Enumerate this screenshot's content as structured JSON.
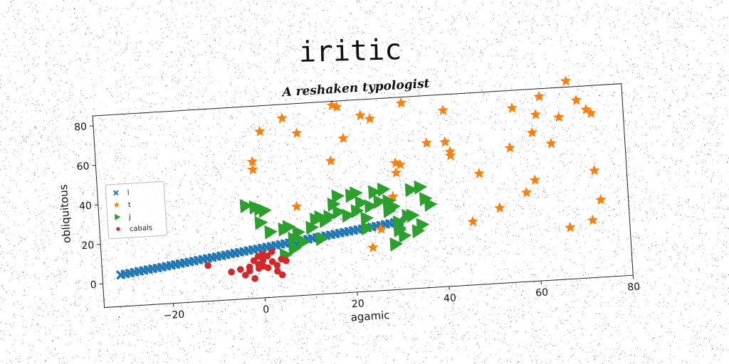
{
  "chart_data": {
    "type": "scatter",
    "title": "iritic",
    "subtitle": "A reshaken typologist",
    "xlabel": "agamic",
    "ylabel": "obliquitous",
    "xlim": [
      -35,
      80
    ],
    "ylim": [
      -12,
      85
    ],
    "xticks": [
      -20,
      0,
      20,
      40,
      60,
      80
    ],
    "yticks": [
      0,
      20,
      40,
      60,
      80
    ],
    "xtick_labels": [
      "−20",
      "0",
      "20",
      "40",
      "60",
      "80"
    ],
    "ytick_labels": [
      "0",
      "20",
      "40",
      "60",
      "80"
    ],
    "grid": false,
    "legend_position": "center-left",
    "series": [
      {
        "name": "l",
        "marker": "x",
        "color": "#1f77b4",
        "x": [
          -31,
          -30,
          -29,
          -28,
          -27,
          -26,
          -25,
          -24,
          -23,
          -22,
          -21,
          -20,
          -19,
          -18,
          -17,
          -16,
          -15,
          -14,
          -13,
          -12,
          -11,
          -10,
          -9,
          -8,
          -7,
          -6,
          -5,
          -4,
          -3,
          -2,
          -1,
          0,
          1,
          2,
          3,
          4,
          5,
          6,
          7,
          8,
          9,
          10,
          11,
          12,
          13,
          14,
          15,
          16,
          17,
          18,
          19,
          20,
          21,
          22,
          23,
          24,
          25,
          26,
          27,
          28,
          29,
          30
        ],
        "y": [
          4.0,
          4.3,
          4.6,
          4.9,
          5.2,
          5.5,
          5.8,
          6.1,
          6.3,
          6.6,
          6.9,
          7.2,
          7.5,
          7.8,
          8.1,
          8.4,
          8.7,
          9.0,
          9.3,
          9.6,
          9.9,
          10.2,
          10.5,
          10.8,
          11.1,
          11.4,
          11.7,
          12.0,
          12.3,
          12.6,
          12.9,
          13.2,
          13.5,
          13.8,
          14.1,
          14.4,
          14.7,
          15.0,
          15.3,
          15.6,
          15.9,
          16.2,
          16.5,
          16.8,
          17.1,
          17.4,
          17.7,
          18.0,
          18.3,
          18.6,
          18.9,
          19.2,
          19.5,
          19.8,
          20.1,
          20.4,
          20.7,
          21.0,
          21.3,
          21.6,
          21.9,
          22.2
        ]
      },
      {
        "name": "t",
        "marker": "star",
        "color": "#ff7f0e",
        "x": [
          1,
          6,
          9,
          -1,
          -1,
          17,
          18,
          16,
          19,
          23,
          25,
          8,
          26,
          30,
          31,
          32,
          41,
          37,
          41,
          42,
          42,
          46,
          48,
          52,
          55,
          56,
          58,
          60,
          60,
          61,
          62,
          64,
          66,
          68,
          70,
          72,
          73,
          74,
          72,
          67,
          73,
          30,
          24
        ],
        "y": [
          72,
          78,
          70,
          57,
          53,
          83,
          82,
          55,
          66,
          77,
          75,
          33,
          19,
          52,
          51,
          82,
          77,
          61,
          61,
          56,
          54,
          20,
          44,
          26,
          56,
          76,
          33,
          39,
          63,
          72,
          81,
          57,
          70,
          88,
          78,
          73,
          71,
          27,
          17,
          14,
          42,
          47,
          10
        ],
        "extra_x": [
          29
        ],
        "extra_y": [
          35
        ]
      },
      {
        "name": "j",
        "marker": "triangle-right",
        "color": "#2ca02c",
        "x": [
          -3,
          -1,
          0,
          1,
          0,
          2,
          5,
          7,
          8,
          5,
          6,
          7,
          9,
          11,
          12,
          13,
          13,
          14,
          15,
          16,
          17,
          17,
          19,
          20,
          21,
          21,
          22,
          23,
          23,
          25,
          24,
          26,
          27,
          28,
          28,
          29,
          30,
          31,
          32,
          33,
          34,
          35,
          35,
          37,
          36,
          33,
          30,
          30,
          29
        ],
        "y": [
          35,
          34,
          33,
          32,
          26,
          21,
          9,
          12,
          20,
          22,
          23,
          17,
          15,
          22,
          26,
          27,
          16,
          25,
          27,
          33,
          37,
          29,
          27,
          37,
          38,
          29,
          33,
          25,
          20,
          38,
          31,
          33,
          39,
          33,
          28,
          30,
          18,
          15,
          25,
          25,
          17,
          20,
          39,
          30,
          33,
          38,
          19,
          22,
          11
        ]
      },
      {
        "name": "cabals",
        "marker": "circle",
        "color": "#d62728",
        "x": [
          -12,
          -7,
          -5,
          -3,
          -3,
          -2,
          -1,
          -1,
          0,
          0,
          1,
          1,
          2,
          2,
          3,
          4,
          5,
          -4,
          -2,
          0,
          3,
          4,
          -1
        ],
        "y": [
          6,
          2,
          3,
          4,
          2,
          7,
          5,
          3,
          10,
          7,
          9,
          3,
          6,
          11,
          4,
          7,
          6,
          0,
          -2,
          4,
          1,
          -1,
          9
        ]
      }
    ]
  }
}
